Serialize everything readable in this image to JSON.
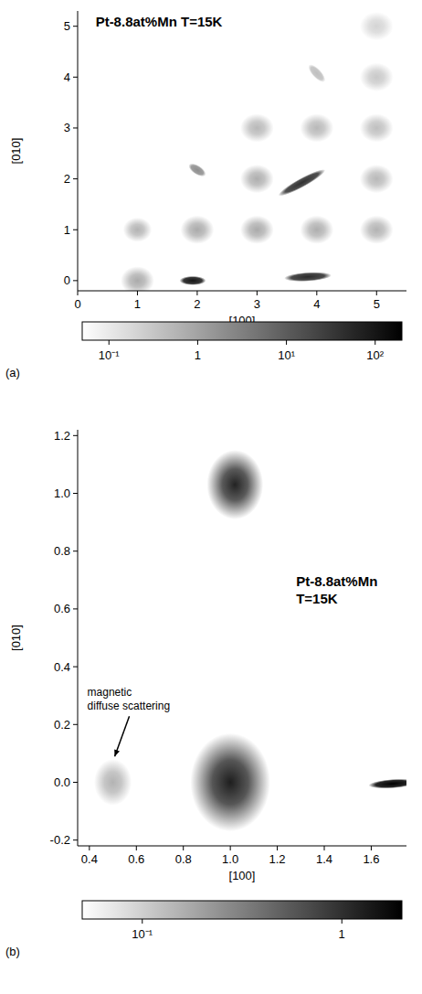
{
  "chart_data": [
    {
      "type": "heatmap",
      "panel": "(a)",
      "title": "Pt-8.8at%Mn T=15K",
      "xlabel": "[100]",
      "ylabel": "[010]",
      "xlim": [
        0,
        5.5
      ],
      "ylim": [
        -0.2,
        5.3
      ],
      "xticks": [
        0,
        1,
        2,
        3,
        4,
        5
      ],
      "yticks": [
        0,
        1,
        2,
        3,
        4,
        5
      ],
      "log": "color",
      "spots": {
        "x": [
          1,
          1,
          2,
          3,
          4,
          5,
          3,
          5,
          3,
          4,
          5,
          5,
          5
        ],
        "y": [
          0,
          1,
          1,
          1,
          1,
          1,
          2,
          2,
          3,
          3,
          3,
          4,
          5
        ],
        "values": [
          0.8,
          0.6,
          0.8,
          0.8,
          0.7,
          0.6,
          0.7,
          0.5,
          0.5,
          0.5,
          0.4,
          0.3,
          0.2
        ],
        "sizes": [
          0.28,
          0.24,
          0.28,
          0.28,
          0.28,
          0.28,
          0.28,
          0.28,
          0.28,
          0.28,
          0.28,
          0.28,
          0.28
        ]
      },
      "streaks": {
        "x": [
          1.75,
          3.5,
          1.9,
          3.4,
          3.9
        ],
        "y": [
          0,
          0.05,
          2.25,
          1.7,
          4.2
        ],
        "x2": [
          2.1,
          4.2,
          2.1,
          4.1,
          4.1
        ],
        "y2": [
          0,
          0.1,
          2.1,
          2.15,
          3.95
        ],
        "values": [
          100,
          50,
          2,
          40,
          0.4
        ]
      },
      "colorbar": {
        "range": [
          0.05,
          200
        ],
        "ticks": [
          {
            "value": 0.1,
            "label": "10⁻¹"
          },
          1,
          {
            "value": 10,
            "label": "10¹"
          },
          {
            "value": 100,
            "label": "10²"
          }
        ]
      }
    },
    {
      "type": "heatmap",
      "panel": "(b)",
      "title": "Pt-8.8at%Mn T=15K",
      "xlabel": "[100]",
      "ylabel": "[010]",
      "xlim": [
        0.35,
        1.75
      ],
      "ylim": [
        -0.22,
        1.22
      ],
      "xticks": [
        0.4,
        0.6,
        0.8,
        {
          "value": 1,
          "label": "1.0"
        },
        1.2,
        1.4,
        1.6
      ],
      "yticks": [
        -0.2,
        {
          "value": 0,
          "label": "0.0"
        },
        0.2,
        0.4,
        0.6,
        0.8,
        {
          "value": 1,
          "label": "1.0"
        },
        1.2
      ],
      "log": "color",
      "spots": {
        "x": [
          1.02,
          1.0,
          0.5
        ],
        "y": [
          1.03,
          0.0,
          0.0
        ],
        "values": [
          1.2,
          1.3,
          0.15
        ],
        "sizes": [
          0.12,
          0.17,
          0.08
        ]
      },
      "streaks": {
        "x": [
          1.6
        ],
        "y": [
          -0.01
        ],
        "x2": [
          1.78
        ],
        "y2": [
          0.0
        ],
        "values": [
          2
        ]
      },
      "annotations": [
        {
          "text": "magnetic diffuse scattering",
          "x": 0.5,
          "y": 0.07
        }
      ],
      "colorbar": {
        "range": [
          0.05,
          2
        ],
        "ticks": [
          {
            "value": 0.1,
            "label": "10⁻¹"
          },
          1
        ]
      }
    }
  ]
}
